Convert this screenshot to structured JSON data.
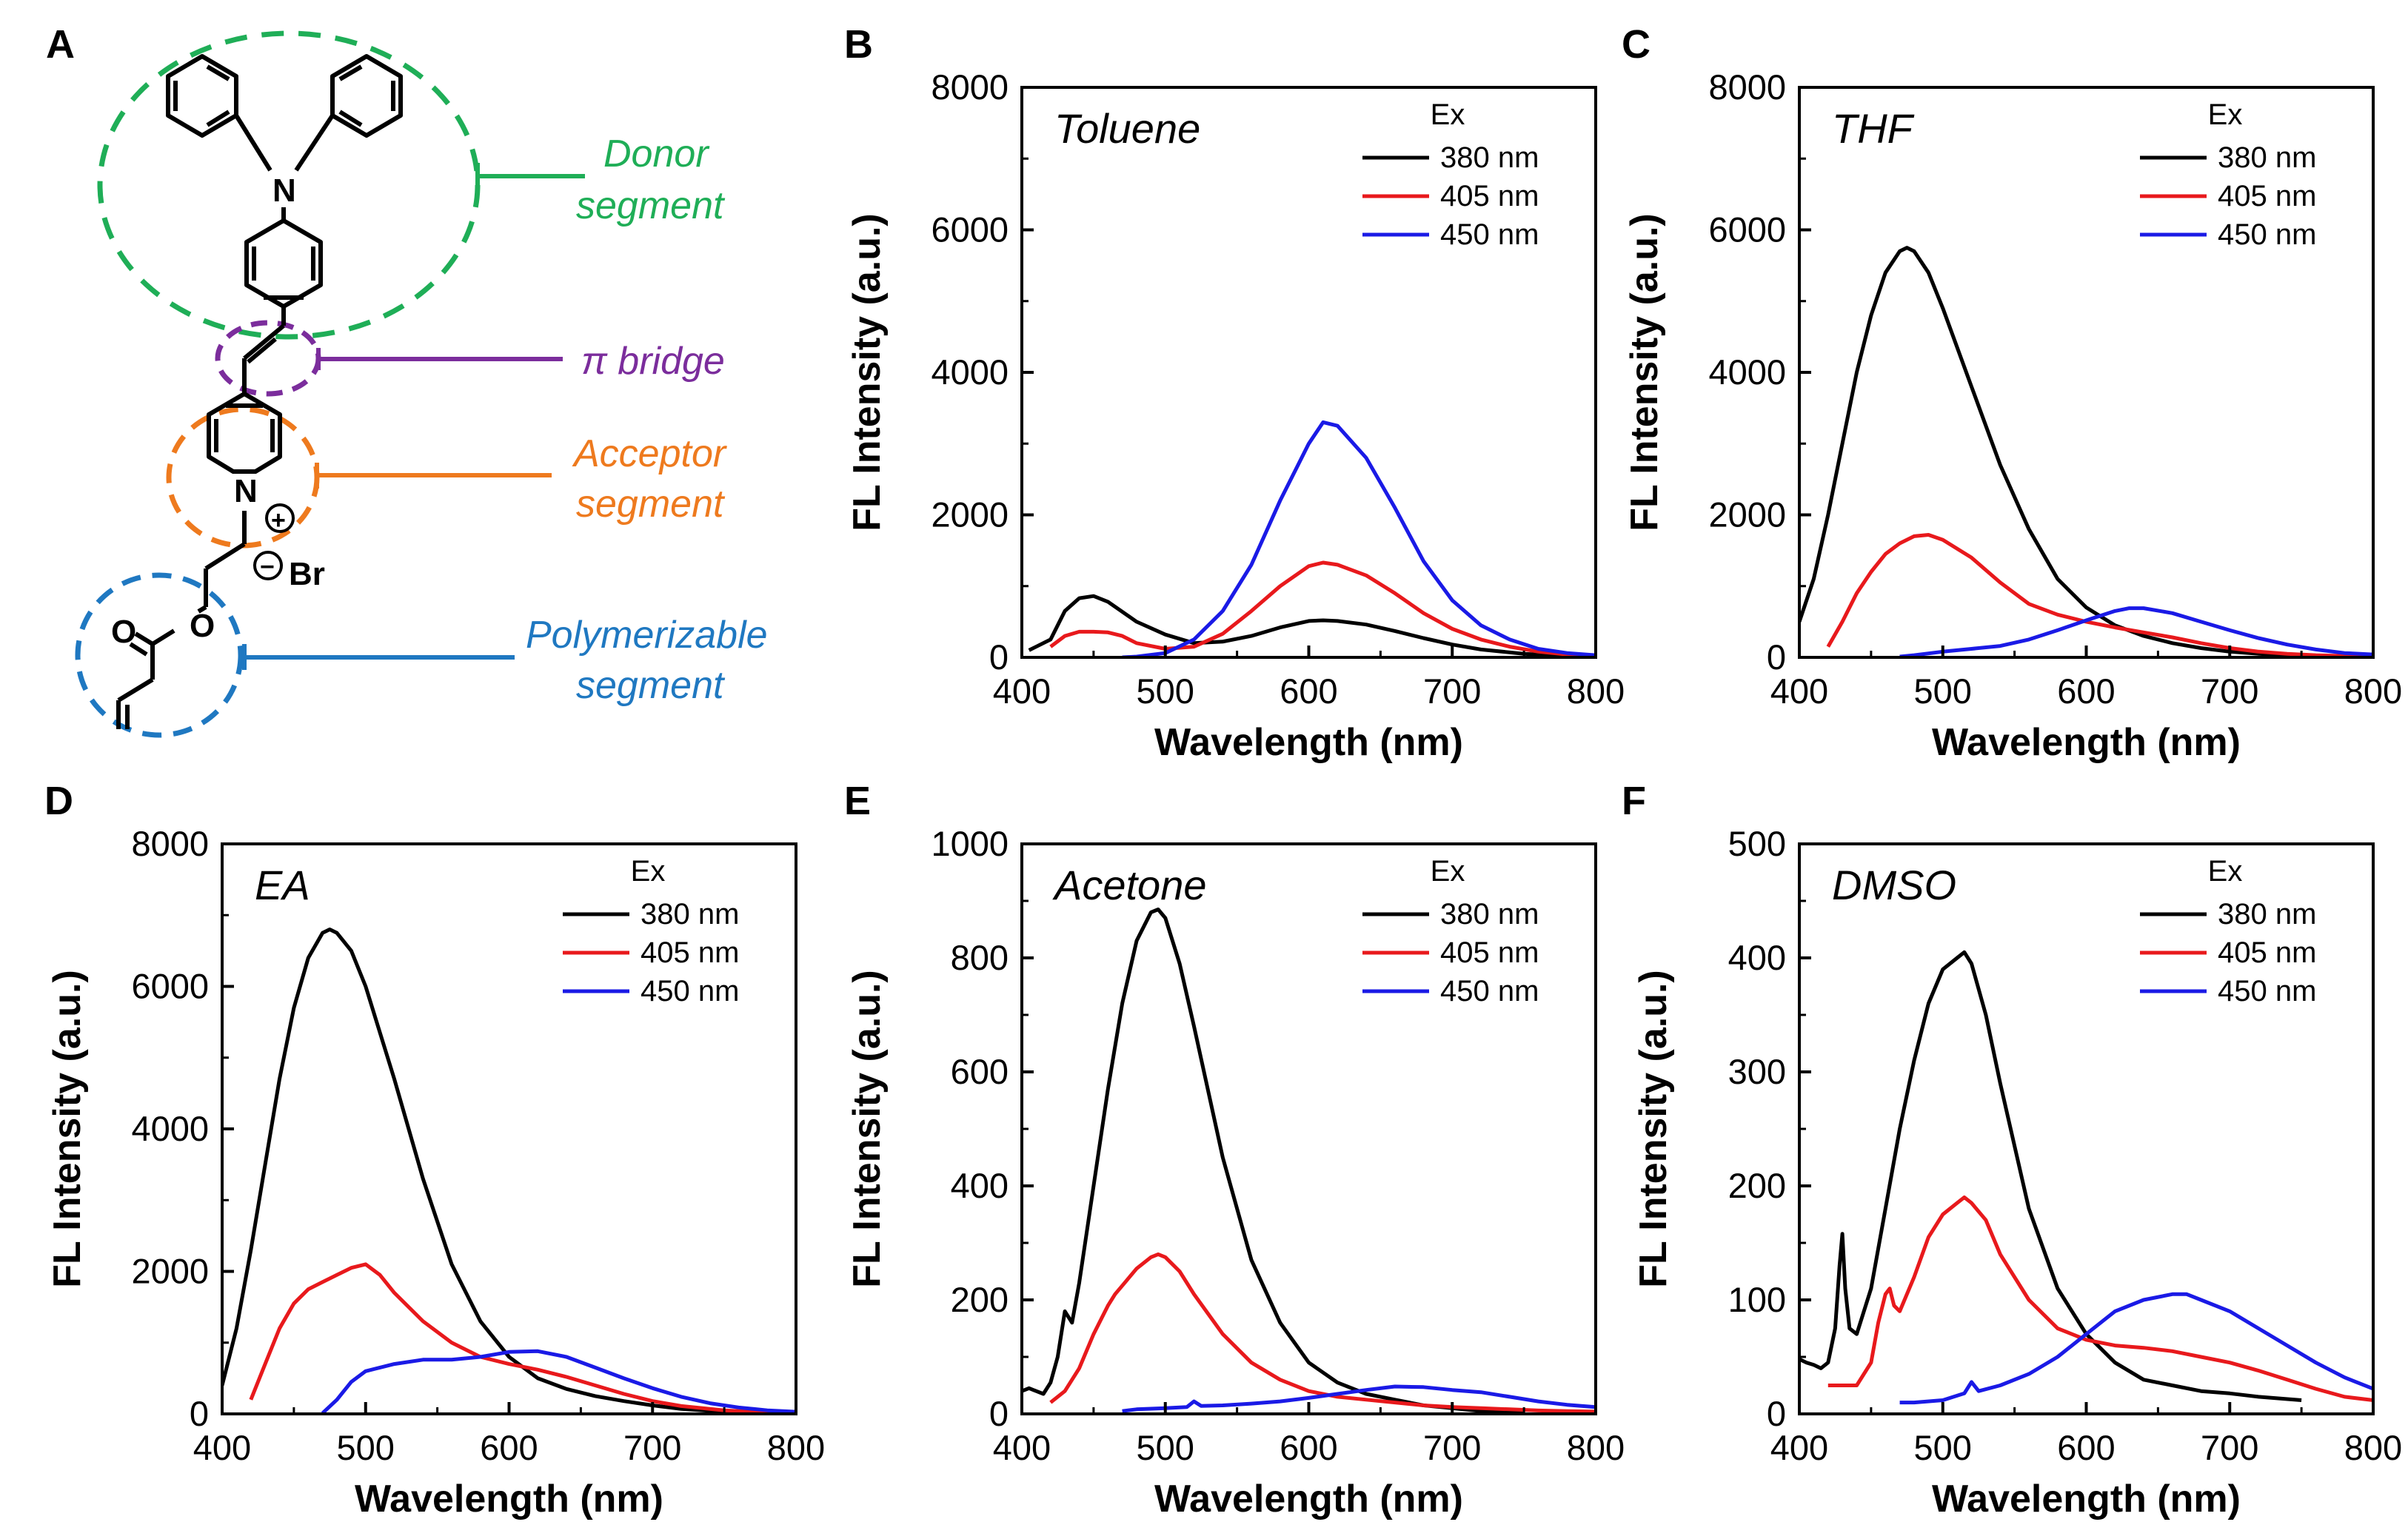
{
  "colors": {
    "ex380": "#000000",
    "ex405": "#e8191c",
    "ex450": "#1a1ae6",
    "donor": "#1fae57",
    "bridge": "#7b2d9c",
    "acceptor": "#ee7a1e",
    "polymer": "#1f78c1"
  },
  "structure": {
    "panel_letter": "A",
    "donor_label": [
      "Donor",
      "segment"
    ],
    "bridge_label": "π bridge",
    "acceptor_label": [
      "Acceptor",
      "segment"
    ],
    "polymer_label": [
      "Polymerizable",
      "segment"
    ],
    "atom_N_top": "N",
    "atom_N_ring": "N",
    "atom_O_ester": "O",
    "atom_O_carbonyl": "O",
    "counter_ion": "Br",
    "plus_sign": "+",
    "minus_sign": "−"
  },
  "chart_data": [
    {
      "type": "line",
      "panel": "B",
      "solvent": "Toluene",
      "xlabel": "Wavelength (nm)",
      "ylabel": "FL Intensity (a.u.)",
      "xlim": [
        400,
        800
      ],
      "ylim": [
        0,
        8000
      ],
      "xticks": [
        400,
        500,
        600,
        700,
        800
      ],
      "yticks": [
        0,
        2000,
        4000,
        6000,
        8000
      ],
      "legend_title": "Ex",
      "series": [
        {
          "name": "380 nm",
          "color_key": "ex380",
          "x": [
            405,
            420,
            430,
            440,
            450,
            460,
            480,
            500,
            520,
            540,
            560,
            580,
            600,
            610,
            620,
            640,
            660,
            680,
            700,
            720,
            750,
            780,
            800
          ],
          "y": [
            100,
            250,
            650,
            830,
            860,
            780,
            500,
            320,
            200,
            220,
            300,
            420,
            510,
            520,
            510,
            460,
            370,
            270,
            180,
            110,
            50,
            20,
            10
          ]
        },
        {
          "name": "405 nm",
          "color_key": "ex405",
          "x": [
            420,
            430,
            440,
            450,
            460,
            470,
            480,
            500,
            520,
            540,
            560,
            580,
            600,
            610,
            620,
            640,
            660,
            680,
            700,
            720,
            740,
            760,
            780,
            800
          ],
          "y": [
            150,
            300,
            360,
            360,
            350,
            300,
            200,
            120,
            150,
            330,
            650,
            1000,
            1280,
            1330,
            1300,
            1150,
            900,
            620,
            400,
            250,
            150,
            80,
            40,
            20
          ]
        },
        {
          "name": "450 nm",
          "color_key": "ex450",
          "x": [
            470,
            480,
            500,
            520,
            540,
            560,
            580,
            600,
            610,
            620,
            640,
            660,
            680,
            700,
            720,
            740,
            760,
            780,
            800
          ],
          "y": [
            0,
            10,
            60,
            250,
            650,
            1300,
            2200,
            3000,
            3300,
            3250,
            2800,
            2100,
            1350,
            800,
            450,
            250,
            120,
            60,
            30
          ]
        }
      ]
    },
    {
      "type": "line",
      "panel": "C",
      "solvent": "THF",
      "xlabel": "Wavelength (nm)",
      "ylabel": "FL Intensity (a.u.)",
      "xlim": [
        400,
        800
      ],
      "ylim": [
        0,
        8000
      ],
      "xticks": [
        400,
        500,
        600,
        700,
        800
      ],
      "yticks": [
        0,
        2000,
        4000,
        6000,
        8000
      ],
      "legend_title": "Ex",
      "series": [
        {
          "name": "380 nm",
          "color_key": "ex380",
          "x": [
            400,
            410,
            420,
            430,
            440,
            450,
            460,
            470,
            475,
            480,
            490,
            500,
            520,
            540,
            560,
            580,
            600,
            620,
            640,
            660,
            680,
            700,
            720,
            750
          ],
          "y": [
            500,
            1100,
            2000,
            3000,
            4000,
            4800,
            5400,
            5700,
            5750,
            5700,
            5400,
            4900,
            3800,
            2700,
            1800,
            1100,
            700,
            450,
            300,
            200,
            130,
            80,
            50,
            20
          ]
        },
        {
          "name": "405 nm",
          "color_key": "ex405",
          "x": [
            420,
            430,
            440,
            450,
            460,
            470,
            480,
            490,
            500,
            520,
            540,
            560,
            580,
            600,
            620,
            640,
            660,
            680,
            700,
            720,
            740,
            760,
            780,
            800
          ],
          "y": [
            150,
            500,
            900,
            1200,
            1450,
            1600,
            1700,
            1720,
            1650,
            1400,
            1050,
            750,
            600,
            500,
            420,
            350,
            280,
            200,
            130,
            80,
            50,
            30,
            20,
            10
          ]
        },
        {
          "name": "450 nm",
          "color_key": "ex450",
          "x": [
            470,
            480,
            500,
            520,
            540,
            560,
            580,
            600,
            620,
            630,
            640,
            660,
            680,
            700,
            720,
            740,
            760,
            780,
            800
          ],
          "y": [
            10,
            30,
            80,
            120,
            160,
            250,
            380,
            520,
            650,
            690,
            690,
            620,
            500,
            380,
            270,
            180,
            110,
            60,
            40
          ]
        }
      ]
    },
    {
      "type": "line",
      "panel": "D",
      "solvent": "EA",
      "xlabel": "Wavelength (nm)",
      "ylabel": "FL Intensity (a.u.)",
      "xlim": [
        400,
        800
      ],
      "ylim": [
        0,
        8000
      ],
      "xticks": [
        400,
        500,
        600,
        700,
        800
      ],
      "yticks": [
        0,
        2000,
        4000,
        6000,
        8000
      ],
      "legend_title": "Ex",
      "series": [
        {
          "name": "380 nm",
          "color_key": "ex380",
          "x": [
            400,
            410,
            420,
            430,
            440,
            450,
            460,
            470,
            475,
            480,
            490,
            500,
            520,
            540,
            560,
            580,
            600,
            620,
            640,
            660,
            680,
            700,
            720,
            750,
            780,
            800
          ],
          "y": [
            400,
            1200,
            2300,
            3500,
            4700,
            5700,
            6400,
            6750,
            6800,
            6750,
            6500,
            6000,
            4700,
            3300,
            2100,
            1300,
            800,
            500,
            350,
            250,
            180,
            120,
            70,
            30,
            10,
            5
          ]
        },
        {
          "name": "405 nm",
          "color_key": "ex405",
          "x": [
            420,
            430,
            440,
            450,
            460,
            470,
            480,
            490,
            500,
            510,
            520,
            540,
            560,
            580,
            600,
            620,
            640,
            660,
            680,
            700,
            720,
            750,
            780,
            800
          ],
          "y": [
            200,
            700,
            1200,
            1550,
            1750,
            1850,
            1950,
            2050,
            2100,
            1950,
            1700,
            1300,
            1000,
            800,
            700,
            620,
            520,
            400,
            280,
            180,
            110,
            50,
            20,
            10
          ]
        },
        {
          "name": "450 nm",
          "color_key": "ex450",
          "x": [
            470,
            480,
            490,
            500,
            510,
            520,
            540,
            560,
            580,
            600,
            620,
            640,
            660,
            680,
            700,
            720,
            740,
            760,
            780,
            800
          ],
          "y": [
            10,
            200,
            450,
            600,
            650,
            700,
            760,
            760,
            800,
            870,
            880,
            800,
            650,
            500,
            360,
            240,
            150,
            90,
            50,
            30
          ]
        }
      ]
    },
    {
      "type": "line",
      "panel": "E",
      "solvent": "Acetone",
      "xlabel": "Wavelength (nm)",
      "ylabel": "FL Intensity (a.u.)",
      "xlim": [
        400,
        800
      ],
      "ylim": [
        0,
        1000
      ],
      "xticks": [
        400,
        500,
        600,
        700,
        800
      ],
      "yticks": [
        0,
        200,
        400,
        600,
        800,
        1000
      ],
      "legend_title": "Ex",
      "series": [
        {
          "name": "380 nm",
          "color_key": "ex380",
          "x": [
            400,
            405,
            410,
            415,
            420,
            425,
            430,
            435,
            440,
            450,
            460,
            470,
            480,
            490,
            495,
            500,
            510,
            520,
            540,
            560,
            580,
            600,
            620,
            640,
            660,
            680,
            700,
            720,
            750
          ],
          "y": [
            40,
            45,
            40,
            35,
            55,
            100,
            180,
            160,
            230,
            400,
            570,
            720,
            830,
            880,
            885,
            870,
            790,
            680,
            450,
            270,
            160,
            90,
            55,
            35,
            25,
            15,
            10,
            5,
            3
          ]
        },
        {
          "name": "405 nm",
          "color_key": "ex405",
          "x": [
            420,
            430,
            440,
            450,
            460,
            465,
            470,
            480,
            490,
            495,
            500,
            510,
            520,
            540,
            560,
            580,
            600,
            620,
            640,
            660,
            680,
            700,
            720,
            740,
            760,
            780,
            800
          ],
          "y": [
            20,
            40,
            80,
            140,
            190,
            210,
            225,
            255,
            275,
            280,
            275,
            250,
            210,
            140,
            90,
            60,
            40,
            30,
            25,
            20,
            15,
            12,
            10,
            8,
            6,
            5,
            4
          ]
        },
        {
          "name": "450 nm",
          "color_key": "ex450",
          "x": [
            470,
            480,
            500,
            515,
            520,
            525,
            540,
            560,
            580,
            600,
            620,
            640,
            660,
            680,
            700,
            720,
            740,
            760,
            780,
            800
          ],
          "y": [
            5,
            8,
            10,
            12,
            22,
            14,
            15,
            18,
            22,
            28,
            35,
            42,
            48,
            47,
            42,
            38,
            30,
            22,
            16,
            12
          ]
        }
      ]
    },
    {
      "type": "line",
      "panel": "F",
      "solvent": "DMSO",
      "xlabel": "Wavelength (nm)",
      "ylabel": "FL Intensity (a.u.)",
      "xlim": [
        400,
        800
      ],
      "ylim": [
        0,
        500
      ],
      "xticks": [
        400,
        500,
        600,
        700,
        800
      ],
      "yticks": [
        0,
        100,
        200,
        300,
        400,
        500
      ],
      "legend_title": "Ex",
      "series": [
        {
          "name": "380 nm",
          "color_key": "ex380",
          "x": [
            400,
            405,
            410,
            415,
            420,
            425,
            428,
            430,
            432,
            435,
            440,
            450,
            460,
            470,
            480,
            490,
            500,
            510,
            515,
            520,
            530,
            540,
            560,
            580,
            600,
            620,
            640,
            660,
            680,
            700,
            720,
            750
          ],
          "y": [
            48,
            45,
            43,
            40,
            45,
            75,
            130,
            158,
            110,
            75,
            70,
            110,
            180,
            250,
            310,
            360,
            390,
            400,
            405,
            395,
            350,
            290,
            180,
            110,
            70,
            45,
            30,
            25,
            20,
            18,
            15,
            12
          ]
        },
        {
          "name": "405 nm",
          "color_key": "ex405",
          "x": [
            420,
            430,
            440,
            450,
            455,
            460,
            463,
            466,
            470,
            480,
            490,
            500,
            510,
            515,
            520,
            530,
            540,
            560,
            580,
            600,
            620,
            640,
            660,
            680,
            700,
            720,
            740,
            760,
            780,
            800
          ],
          "y": [
            25,
            25,
            25,
            45,
            80,
            105,
            110,
            95,
            90,
            120,
            155,
            175,
            185,
            190,
            185,
            170,
            140,
            100,
            75,
            65,
            60,
            58,
            55,
            50,
            45,
            38,
            30,
            22,
            15,
            12
          ]
        },
        {
          "name": "450 nm",
          "color_key": "ex450",
          "x": [
            470,
            480,
            500,
            515,
            520,
            525,
            540,
            560,
            580,
            600,
            620,
            640,
            660,
            670,
            680,
            700,
            720,
            740,
            760,
            780,
            800
          ],
          "y": [
            10,
            10,
            12,
            18,
            28,
            20,
            25,
            35,
            50,
            70,
            90,
            100,
            105,
            105,
            100,
            90,
            75,
            60,
            45,
            32,
            22
          ]
        }
      ]
    }
  ]
}
